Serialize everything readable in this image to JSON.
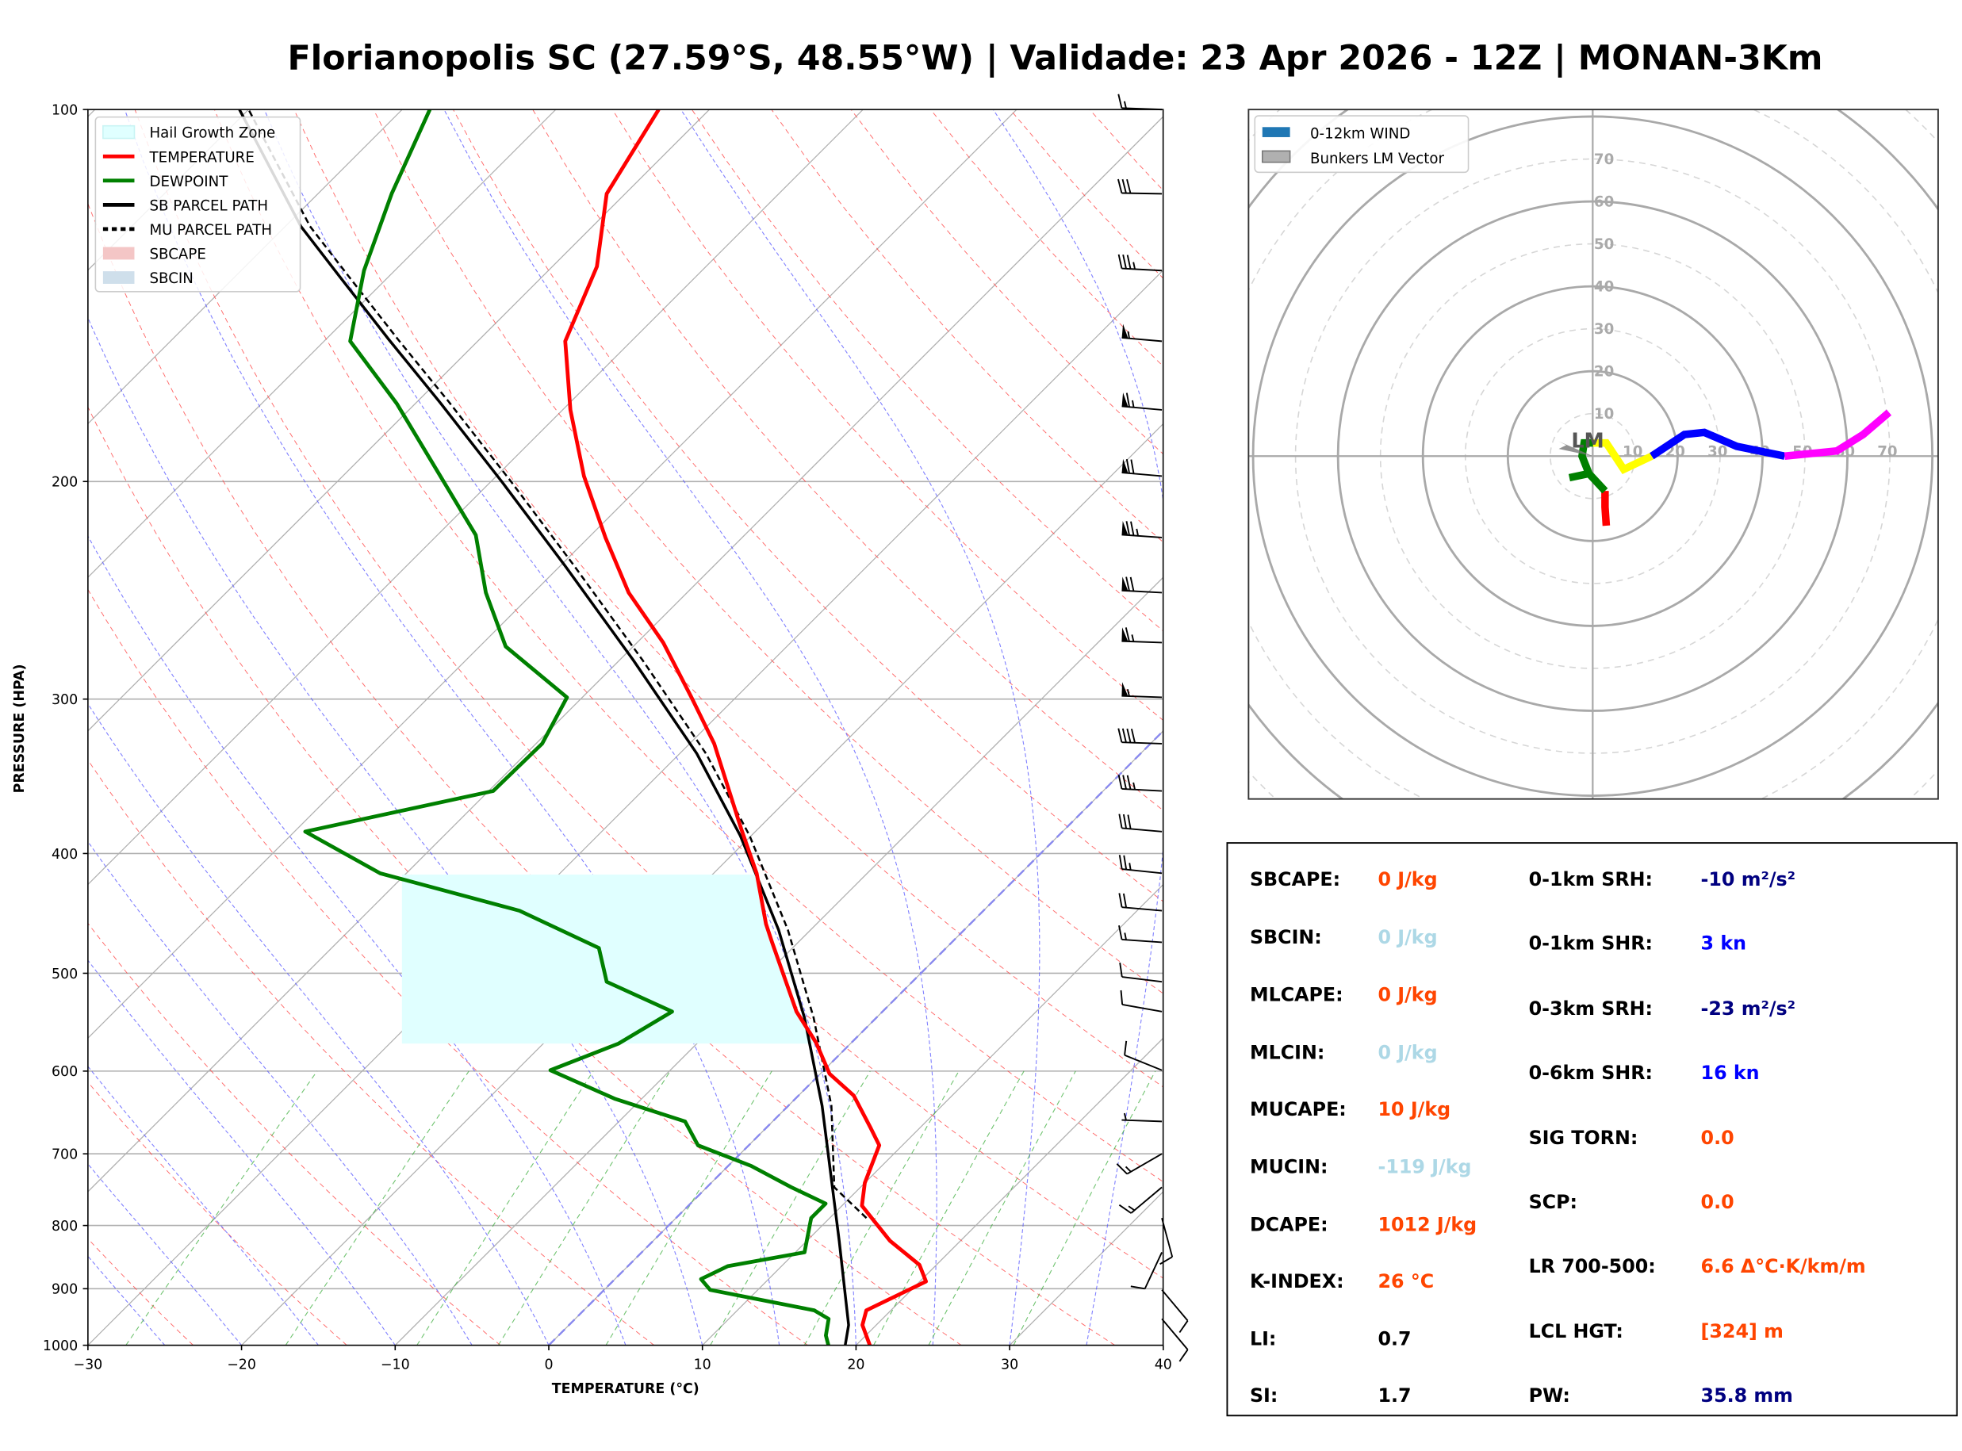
{
  "title": "Florianopolis SC (27.59°S, 48.55°W) | Validade: 23 Apr 2026 - 12Z | MONAN-3Km",
  "chart_data": [
    {
      "type": "line",
      "subtype": "skew-t log-p",
      "xlabel": "TEMPERATURE (°C)",
      "ylabel": "PRESSURE (HPA)",
      "xlim": [
        -30,
        40
      ],
      "ylim": [
        1000,
        100
      ],
      "y_scale": "log",
      "grid": true,
      "legend_placement": "top-left",
      "x_ticks": [
        -30,
        -20,
        -10,
        0,
        10,
        20,
        30,
        40
      ],
      "x_tick_labels": [
        "−30",
        "−20",
        "−10",
        "0",
        "10",
        "20",
        "30",
        "40"
      ],
      "y_ticks": [
        100,
        200,
        300,
        400,
        500,
        600,
        700,
        800,
        900,
        1000
      ],
      "y_tick_labels": [
        "100",
        "200",
        "300",
        "400",
        "500",
        "600",
        "700",
        "800",
        "900",
        "1000"
      ],
      "legend": [
        {
          "label": "Hail Growth Zone",
          "color": "#e0ffff",
          "style": "patch"
        },
        {
          "label": "TEMPERATURE",
          "color": "#ff0000",
          "style": "line"
        },
        {
          "label": "DEWPOINT",
          "color": "#008000",
          "style": "line"
        },
        {
          "label": "SB PARCEL PATH",
          "color": "#000000",
          "style": "line"
        },
        {
          "label": "MU PARCEL PATH",
          "color": "#000000",
          "style": "dashed"
        },
        {
          "label": "SBCAPE",
          "color": "#f4c6c6",
          "style": "patch"
        },
        {
          "label": "SBCIN",
          "color": "#cfdfeb",
          "style": "patch"
        }
      ],
      "hail_growth_zone_hpa": [
        570,
        416
      ],
      "series": [
        {
          "name": "TEMPERATURE",
          "color": "#ff0000",
          "p": [
            1000,
            963,
            937,
            888,
            861,
            823,
            771,
            739,
            689,
            667,
            628,
            603,
            569,
            537,
            472,
            456,
            415,
            382,
            326,
            299,
            270,
            246,
            222,
            198,
            175,
            154,
            134,
            117,
            100
          ],
          "T": [
            20.9,
            19.1,
            18.4,
            20.4,
            18.9,
            15.4,
            11.3,
            10.0,
            8.5,
            6.8,
            3.6,
            0.6,
            -2.3,
            -5.6,
            -11.7,
            -13.3,
            -17.2,
            -21.1,
            -28.4,
            -32.9,
            -38.3,
            -43.8,
            -48.9,
            -54.3,
            -59.5,
            -64.3,
            -67.1,
            -71.2,
            -73.3
          ]
        },
        {
          "name": "DEWPOINT",
          "color": "#008000",
          "p": [
            1000,
            982,
            952,
            937,
            902,
            884,
            863,
            841,
            789,
            768,
            745,
            716,
            689,
            659,
            632,
            599,
            570,
            537,
            508,
            477,
            445,
            415,
            384,
            356,
            326,
            299,
            272,
            246,
            221,
            173,
            154,
            135,
            117,
            100
          ],
          "T": [
            18.2,
            17.4,
            16.5,
            15.0,
            6.9,
            5.6,
            6.5,
            10.6,
            8.8,
            8.8,
            5.5,
            1.5,
            -3.3,
            -5.7,
            -11.7,
            -17.8,
            -15.1,
            -13.7,
            -19.9,
            -22.6,
            -30.2,
            -41.7,
            -49.3,
            -39.7,
            -39.6,
            -41.0,
            -48.3,
            -53.1,
            -57.5,
            -71.2,
            -78.3,
            -82.0,
            -85.2,
            -88.2
          ]
        },
        {
          "name": "SB PARCEL PATH",
          "color": "#000000",
          "p": [
            1000,
            963,
            823,
            640,
            543,
            461,
            387,
            332,
            279,
            234,
            200,
            172.5,
            153.5,
            136.5,
            124.3,
            100
          ],
          "T": [
            19.3,
            18.2,
            12.1,
            2.2,
            -4.7,
            -12.1,
            -20.7,
            -28.9,
            -39.1,
            -49.7,
            -59.3,
            -68.5,
            -75.9,
            -83.2,
            -89.0,
            -100.6
          ]
        },
        {
          "name": "MU PARCEL PATH",
          "color": "#000000",
          "p": [
            789,
            745,
            640,
            543,
            461,
            387,
            332,
            279,
            234,
            200,
            172.5,
            153.5,
            136.5,
            124.3,
            100
          ],
          "T": [
            12.4,
            8.3,
            2.8,
            -4.1,
            -11.5,
            -20.1,
            -28.3,
            -38.5,
            -49.1,
            -58.7,
            -67.9,
            -75.3,
            -82.6,
            -88.4,
            -100.0
          ]
        }
      ],
      "wind_barbs": [
        {
          "p": 100,
          "dir": 272,
          "spd_kt": 15
        },
        {
          "p": 117,
          "dir": 271,
          "spd_kt": 30
        },
        {
          "p": 135,
          "dir": 273,
          "spd_kt": 35
        },
        {
          "p": 154,
          "dir": 275,
          "spd_kt": 55
        },
        {
          "p": 175,
          "dir": 275,
          "spd_kt": 65
        },
        {
          "p": 198,
          "dir": 275,
          "spd_kt": 70
        },
        {
          "p": 222,
          "dir": 274,
          "spd_kt": 75
        },
        {
          "p": 246,
          "dir": 273,
          "spd_kt": 70
        },
        {
          "p": 270,
          "dir": 272,
          "spd_kt": 65
        },
        {
          "p": 299,
          "dir": 272,
          "spd_kt": 55
        },
        {
          "p": 326,
          "dir": 272,
          "spd_kt": 40
        },
        {
          "p": 356,
          "dir": 273,
          "spd_kt": 35
        },
        {
          "p": 384,
          "dir": 275,
          "spd_kt": 30
        },
        {
          "p": 415,
          "dir": 276,
          "spd_kt": 25
        },
        {
          "p": 445,
          "dir": 275,
          "spd_kt": 20
        },
        {
          "p": 472,
          "dir": 274,
          "spd_kt": 15
        },
        {
          "p": 508,
          "dir": 277,
          "spd_kt": 10
        },
        {
          "p": 537,
          "dir": 280,
          "spd_kt": 10
        },
        {
          "p": 599,
          "dir": 292,
          "spd_kt": 10
        },
        {
          "p": 659,
          "dir": 272,
          "spd_kt": 5
        },
        {
          "p": 700,
          "dir": 240,
          "spd_kt": 15
        },
        {
          "p": 745,
          "dir": 230,
          "spd_kt": 15
        },
        {
          "p": 789,
          "dir": 165,
          "spd_kt": 10
        },
        {
          "p": 841,
          "dir": 205,
          "spd_kt": 10
        },
        {
          "p": 902,
          "dir": 140,
          "spd_kt": 10
        },
        {
          "p": 952,
          "dir": 140,
          "spd_kt": 10
        }
      ]
    },
    {
      "type": "line",
      "subtype": "hodograph",
      "rings_kt": [
        10,
        20,
        30,
        40,
        50,
        60,
        70
      ],
      "ring_labels": [
        "10",
        "20",
        "30",
        "40",
        "50",
        "60",
        "70"
      ],
      "legend_placement": "top-left",
      "legend": [
        {
          "label": "0-12km WIND",
          "color": "#1f77b4"
        },
        {
          "label": "Bunkers LM Vector",
          "color": "#a9a9a9"
        }
      ],
      "series": [
        {
          "color": "#ff0000",
          "u": [
            3.2,
            2.9,
            2.9
          ],
          "v": [
            -16.4,
            -12.0,
            -8.2
          ]
        },
        {
          "color": "#008000",
          "u": [
            2.9,
            -0.9,
            -5.5,
            -0.9,
            -2.5,
            -2.0,
            0.1
          ],
          "v": [
            -8.2,
            -4.1,
            -5.1,
            -4.1,
            0.0,
            3.1,
            3.1
          ]
        },
        {
          "color": "#ffff00",
          "u": [
            0.1,
            3.2,
            7.3,
            13.9
          ],
          "v": [
            3.1,
            3.1,
            -3.1,
            0.0
          ]
        },
        {
          "color": "#0000ff",
          "u": [
            13.9,
            21.6,
            26.3,
            33.9,
            45.2
          ],
          "v": [
            0.0,
            5.1,
            5.6,
            2.3,
            0.0
          ]
        },
        {
          "color": "#ff00ff",
          "u": [
            45.2,
            57.5,
            63.7,
            69.8
          ],
          "v": [
            0.0,
            1.2,
            5.1,
            10.3
          ]
        }
      ],
      "bunkers_lm": {
        "label": "LM",
        "u": -8.0,
        "v": 2.6
      }
    }
  ],
  "stats": {
    "left": [
      {
        "label": "SBCAPE:",
        "value": "0 J/kg",
        "color": "#ff4500"
      },
      {
        "label": "SBCIN:",
        "value": "0 J/kg",
        "color": "#add8e6"
      },
      {
        "label": "MLCAPE:",
        "value": "0 J/kg",
        "color": "#ff4500"
      },
      {
        "label": "MLCIN:",
        "value": "0 J/kg",
        "color": "#add8e6"
      },
      {
        "label": "MUCAPE:",
        "value": "10 J/kg",
        "color": "#ff4500"
      },
      {
        "label": "MUCIN:",
        "value": "-119 J/kg",
        "color": "#add8e6"
      },
      {
        "label": "DCAPE:",
        "value": "1012 J/kg",
        "color": "#ff4500"
      },
      {
        "label": "K-INDEX:",
        "value": "26 °C",
        "color": "#ff4500"
      },
      {
        "label": "LI:",
        "value": "0.7",
        "color": "#000000"
      },
      {
        "label": "SI:",
        "value": "1.7",
        "color": "#000000"
      }
    ],
    "right": [
      {
        "label": "0-1km SRH:",
        "value": "-10 m²/s²",
        "color": "#000080"
      },
      {
        "label": "0-1km SHR:",
        "value": "3 kn",
        "color": "#0000ff"
      },
      {
        "label": "0-3km SRH:",
        "value": "-23 m²/s²",
        "color": "#000080"
      },
      {
        "label": "0-6km SHR:",
        "value": "16 kn",
        "color": "#0000ff"
      },
      {
        "label": "SIG TORN:",
        "value": "0.0",
        "color": "#ff4500"
      },
      {
        "label": "SCP:",
        "value": "0.0",
        "color": "#ff4500"
      },
      {
        "label": "LR 700-500:",
        "value": "6.6 Δ°C·K/km/m",
        "color": "#ff4500"
      },
      {
        "label": "LCL HGT:",
        "value": "[324] m",
        "color": "#ff4500"
      },
      {
        "label": "PW:",
        "value": "35.8 mm",
        "color": "#000080"
      }
    ]
  }
}
